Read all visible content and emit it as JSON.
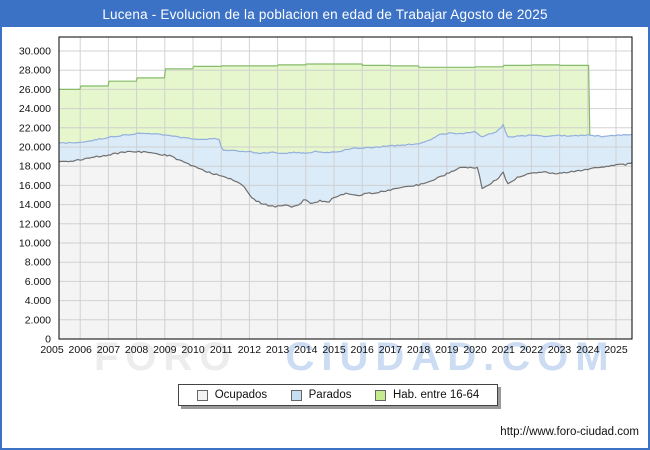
{
  "window": {
    "title": "Lucena - Evolucion de la poblacion en edad de Trabajar Agosto de 2025"
  },
  "watermark": {
    "part1": "FORO",
    "part2": "CIUDAD.COM"
  },
  "footer": {
    "url": "http://www.foro-ciudad.com"
  },
  "colors": {
    "frame_blue": "#3b72c6",
    "plot_border": "#000000",
    "grid": "#cccccc",
    "plot_bg": "#ffffff",
    "axis_text": "#111111"
  },
  "legend": {
    "items": [
      {
        "label": "Ocupados",
        "fill": "#f2f2f2",
        "border": "#666666"
      },
      {
        "label": "Parados",
        "fill": "#c6def2",
        "border": "#666666"
      },
      {
        "label": "Hab. entre 16-64",
        "fill": "#c4ec8e",
        "border": "#666666"
      }
    ]
  },
  "chart_data": {
    "type": "area",
    "title": "Lucena - Evolucion de la poblacion en edad de Trabajar Agosto de 2025",
    "xlabel": "",
    "ylabel": "",
    "x_range": [
      2005.0,
      2025.7
    ],
    "ylim": [
      0,
      30000
    ],
    "y_tick_step": 2000,
    "grid": true,
    "legend_position": "bottom",
    "note": "Monthly data Jan-2005 to Aug-2025. 'Parados' is plotted stacked on top of 'Ocupados' (band between the two lines). 'Hab. entre 16-64' (annual padron steps) ends Jan-2024 where the green area drops to the Parados line.",
    "y_tick_labels": [
      "0",
      "2.000",
      "4.000",
      "6.000",
      "8.000",
      "10.000",
      "12.000",
      "14.000",
      "16.000",
      "18.000",
      "20.000",
      "22.000",
      "24.000",
      "26.000",
      "28.000",
      "30.000"
    ],
    "x_tick_labels": [
      "2005",
      "2006",
      "2007",
      "2008",
      "2009",
      "2010",
      "2011",
      "2012",
      "2013",
      "2014",
      "2015",
      "2016",
      "2017",
      "2018",
      "2019",
      "2020",
      "2021",
      "2022",
      "2023",
      "2024",
      "2025"
    ],
    "series": [
      {
        "name": "Ocupados",
        "line_color": "#6f6f6f",
        "fill_color": "#f4f4f4",
        "mode": "monthly_interpolated",
        "noise_amp": 80,
        "anchors": [
          [
            2005.0,
            18300
          ],
          [
            2005.3,
            18450
          ],
          [
            2005.6,
            18500
          ],
          [
            2006.0,
            18650
          ],
          [
            2006.4,
            18950
          ],
          [
            2007.0,
            19150
          ],
          [
            2007.4,
            19400
          ],
          [
            2008.0,
            19550
          ],
          [
            2008.4,
            19400
          ],
          [
            2008.8,
            19250
          ],
          [
            2009.2,
            19050
          ],
          [
            2009.6,
            18500
          ],
          [
            2010.0,
            18050
          ],
          [
            2010.5,
            17400
          ],
          [
            2011.0,
            17000
          ],
          [
            2011.4,
            16600
          ],
          [
            2011.8,
            15900
          ],
          [
            2012.1,
            14600
          ],
          [
            2012.4,
            14150
          ],
          [
            2012.7,
            13900
          ],
          [
            2012.9,
            13750
          ],
          [
            2013.2,
            13950
          ],
          [
            2013.5,
            13800
          ],
          [
            2013.8,
            14100
          ],
          [
            2013.95,
            14650
          ],
          [
            2014.2,
            14100
          ],
          [
            2014.5,
            14400
          ],
          [
            2014.8,
            14250
          ],
          [
            2015.0,
            14800
          ],
          [
            2015.4,
            15150
          ],
          [
            2015.8,
            14950
          ],
          [
            2016.2,
            15150
          ],
          [
            2016.6,
            15300
          ],
          [
            2017.0,
            15500
          ],
          [
            2017.5,
            15800
          ],
          [
            2018.0,
            16050
          ],
          [
            2018.5,
            16500
          ],
          [
            2019.0,
            17200
          ],
          [
            2019.4,
            17800
          ],
          [
            2019.8,
            17850
          ],
          [
            2020.1,
            17800
          ],
          [
            2020.25,
            15700
          ],
          [
            2020.5,
            16100
          ],
          [
            2020.8,
            16700
          ],
          [
            2021.0,
            17400
          ],
          [
            2021.15,
            16100
          ],
          [
            2021.5,
            16850
          ],
          [
            2022.0,
            17250
          ],
          [
            2022.4,
            17400
          ],
          [
            2022.8,
            17200
          ],
          [
            2023.2,
            17300
          ],
          [
            2023.6,
            17500
          ],
          [
            2024.0,
            17700
          ],
          [
            2024.4,
            17850
          ],
          [
            2024.8,
            18000
          ],
          [
            2025.1,
            18250
          ],
          [
            2025.3,
            18150
          ],
          [
            2025.583,
            18400
          ]
        ]
      },
      {
        "name": "Parados",
        "stacked_on": "Ocupados",
        "line_color": "#92afdd",
        "fill_color": "#dcebf8",
        "mode": "monthly_interpolated",
        "noise_amp": 60,
        "anchors": [
          [
            2005.0,
            19600
          ],
          [
            2005.25,
            20400
          ],
          [
            2005.6,
            20450
          ],
          [
            2006.0,
            20500
          ],
          [
            2006.5,
            20700
          ],
          [
            2007.0,
            21000
          ],
          [
            2007.6,
            21250
          ],
          [
            2008.2,
            21450
          ],
          [
            2008.8,
            21300
          ],
          [
            2009.3,
            21100
          ],
          [
            2009.8,
            20900
          ],
          [
            2010.3,
            20750
          ],
          [
            2010.9,
            20900
          ],
          [
            2011.05,
            19650
          ],
          [
            2011.5,
            19600
          ],
          [
            2012.0,
            19500
          ],
          [
            2012.35,
            19350
          ],
          [
            2012.8,
            19450
          ],
          [
            2013.2,
            19300
          ],
          [
            2013.6,
            19450
          ],
          [
            2014.0,
            19350
          ],
          [
            2014.4,
            19550
          ],
          [
            2014.8,
            19400
          ],
          [
            2015.2,
            19550
          ],
          [
            2015.6,
            19850
          ],
          [
            2016.0,
            19900
          ],
          [
            2016.5,
            20000
          ],
          [
            2017.0,
            20100
          ],
          [
            2017.5,
            20200
          ],
          [
            2018.0,
            20350
          ],
          [
            2018.4,
            20700
          ],
          [
            2018.8,
            21350
          ],
          [
            2019.2,
            21450
          ],
          [
            2019.6,
            21400
          ],
          [
            2020.0,
            21550
          ],
          [
            2020.25,
            21000
          ],
          [
            2020.5,
            21350
          ],
          [
            2020.75,
            21500
          ],
          [
            2021.0,
            22300
          ],
          [
            2021.15,
            21000
          ],
          [
            2021.6,
            21150
          ],
          [
            2022.0,
            21250
          ],
          [
            2022.5,
            21100
          ],
          [
            2023.0,
            21200
          ],
          [
            2023.5,
            21150
          ],
          [
            2024.0,
            21250
          ],
          [
            2024.5,
            21100
          ],
          [
            2025.0,
            21250
          ],
          [
            2025.583,
            21300
          ]
        ]
      },
      {
        "name": "Hab. entre 16-64",
        "stacked_on": "Parados",
        "line_color": "#85bb6a",
        "fill_color": "#e6f6cd",
        "mode": "anchors_exact",
        "noise_amp": 0,
        "end_year": 2024.07,
        "anchors": [
          [
            2005.0,
            26000
          ],
          [
            2005.99,
            26000
          ],
          [
            2006.02,
            26350
          ],
          [
            2006.99,
            26350
          ],
          [
            2007.02,
            26850
          ],
          [
            2007.99,
            26850
          ],
          [
            2008.02,
            27200
          ],
          [
            2008.99,
            27200
          ],
          [
            2009.02,
            28150
          ],
          [
            2009.99,
            28150
          ],
          [
            2010.02,
            28400
          ],
          [
            2010.99,
            28400
          ],
          [
            2011.02,
            28450
          ],
          [
            2012.99,
            28450
          ],
          [
            2013.02,
            28550
          ],
          [
            2013.99,
            28550
          ],
          [
            2014.02,
            28650
          ],
          [
            2015.99,
            28650
          ],
          [
            2016.02,
            28500
          ],
          [
            2016.99,
            28500
          ],
          [
            2017.02,
            28450
          ],
          [
            2017.99,
            28450
          ],
          [
            2018.02,
            28300
          ],
          [
            2019.99,
            28300
          ],
          [
            2020.02,
            28350
          ],
          [
            2020.99,
            28350
          ],
          [
            2021.02,
            28500
          ],
          [
            2021.99,
            28500
          ],
          [
            2022.02,
            28550
          ],
          [
            2022.99,
            28550
          ],
          [
            2023.02,
            28500
          ],
          [
            2024.03,
            28500
          ],
          [
            2024.07,
            21240
          ]
        ]
      }
    ]
  }
}
